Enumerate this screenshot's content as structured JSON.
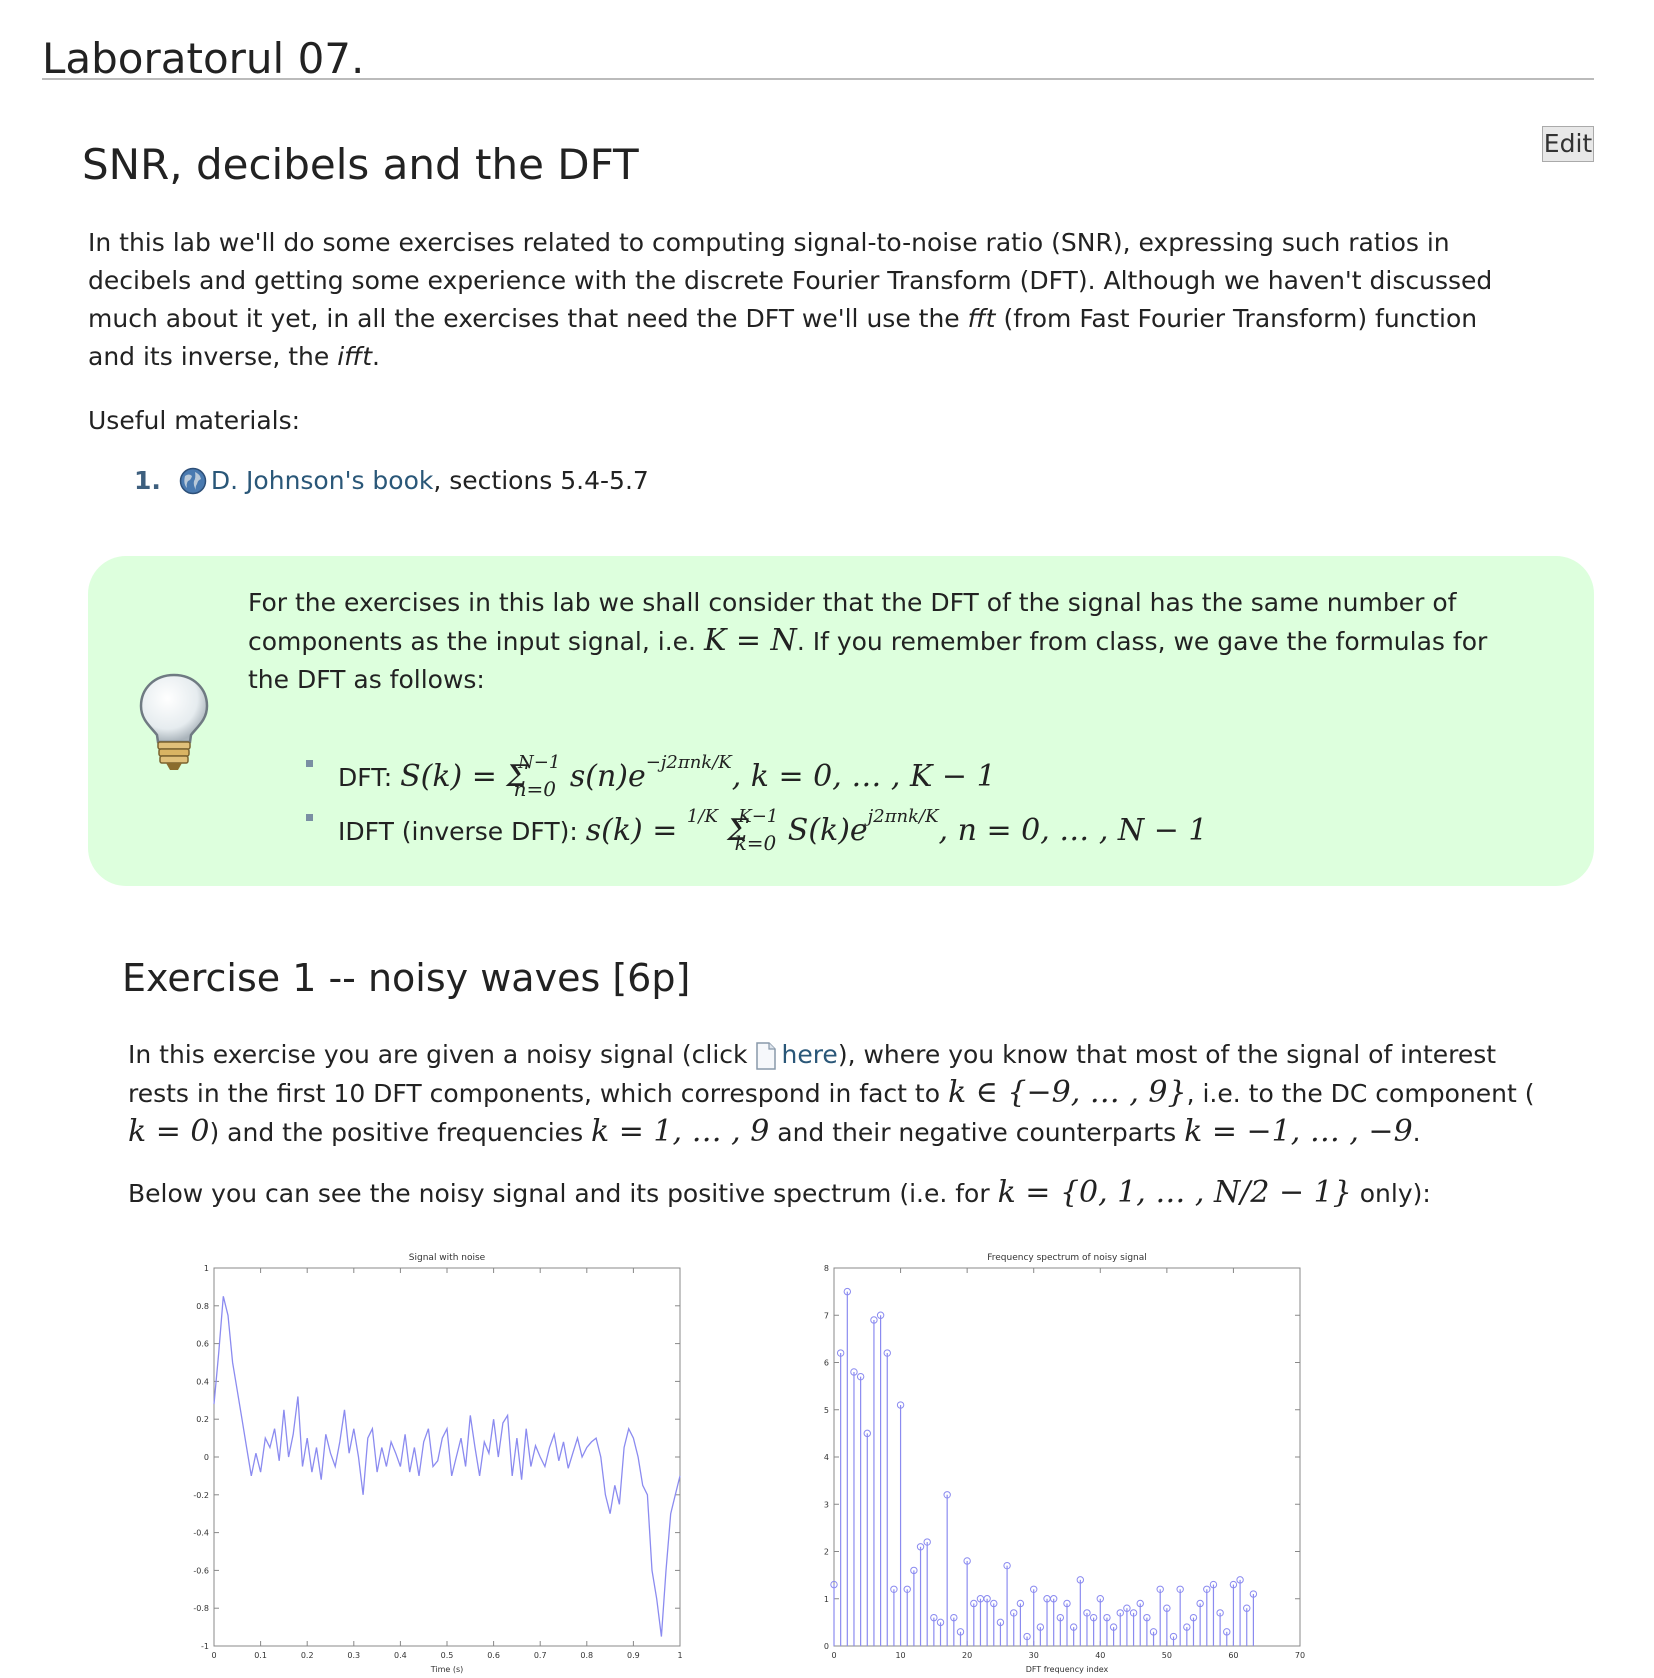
{
  "page": {
    "title": "Laboratorul 07.",
    "edit_label": "Edit",
    "section_title": "SNR, decibels and the DFT"
  },
  "intro": {
    "line1": "In this lab we'll do some exercises related to computing signal-to-noise ratio (SNR), expressing such ratios in",
    "line2": "decibels and getting some experience with the discrete Fourier Transform (DFT). Although we haven't discussed",
    "line3_a": "much about it yet, in all the exercises that need the DFT we'll use the ",
    "line3_fft": "fft",
    "line3_b": " (from Fast Fourier Transform) function",
    "line4_a": "and its inverse, the ",
    "line4_ifft": "ifft",
    "line4_b": "."
  },
  "useful": {
    "label": "Useful materials:",
    "items": [
      {
        "number": "1.",
        "link_text": "D. Johnson's book",
        "rest": ", sections 5.4-5.7",
        "icon": "globe-icon"
      }
    ]
  },
  "tip": {
    "icon": "lightbulb-icon",
    "line1": "For the exercises in this lab we shall consider that the DFT of the signal has the same number of",
    "line2_a": "components as the input signal, i.e. ",
    "line2_math": "K = N",
    "line2_b": ". If you remember from class, we gave the formulas for",
    "line3": "the DFT as follows:",
    "dft_label": "DFT: ",
    "idft_label": "IDFT (inverse DFT): "
  },
  "exercise1": {
    "title": "Exercise 1 -- noisy waves [6p]",
    "p1_a": "In this exercise you are given a noisy signal (click ",
    "p1_link": "here",
    "p1_b": "), where you know that most of the signal of interest",
    "p2_a": "rests in the first 10 DFT components, which correspond in fact to ",
    "p2_math": "k ∈ {−9, … , 9}",
    "p2_b": ", i.e. to the DC component (",
    "p3_math1": "k = 0",
    "p3_a": ") and the positive frequencies ",
    "p3_math2": "k = 1, … , 9",
    "p3_b": " and their negative counterparts ",
    "p3_math3": "k = −1, … , −9",
    "p3_c": ".",
    "below_a": "Below you can see the noisy signal and its positive spectrum (i.e. for ",
    "below_math": "k = {0, 1, … , N/2 − 1}",
    "below_b": " only):"
  },
  "chart_data": [
    {
      "type": "line",
      "title": "Signal with noise",
      "xlabel": "Time (s)",
      "ylabel": "",
      "xlim": [
        0,
        1
      ],
      "ylim": [
        -1,
        1
      ],
      "xticks": [
        "0",
        "0.1",
        "0.2",
        "0.3",
        "0.4",
        "0.5",
        "0.6",
        "0.7",
        "0.8",
        "0.9",
        "1"
      ],
      "yticks": [
        "-1",
        "-0.8",
        "-0.6",
        "-0.4",
        "-0.2",
        "0",
        "0.2",
        "0.4",
        "0.6",
        "0.8",
        "1"
      ],
      "color": "#8b8bf0",
      "x": [
        0,
        0.01,
        0.02,
        0.03,
        0.04,
        0.05,
        0.06,
        0.07,
        0.08,
        0.09,
        0.1,
        0.11,
        0.12,
        0.13,
        0.14,
        0.15,
        0.16,
        0.17,
        0.18,
        0.19,
        0.2,
        0.21,
        0.22,
        0.23,
        0.24,
        0.25,
        0.26,
        0.27,
        0.28,
        0.29,
        0.3,
        0.31,
        0.32,
        0.33,
        0.34,
        0.35,
        0.36,
        0.37,
        0.38,
        0.39,
        0.4,
        0.41,
        0.42,
        0.43,
        0.44,
        0.45,
        0.46,
        0.47,
        0.48,
        0.49,
        0.5,
        0.51,
        0.52,
        0.53,
        0.54,
        0.55,
        0.56,
        0.57,
        0.58,
        0.59,
        0.6,
        0.61,
        0.62,
        0.63,
        0.64,
        0.65,
        0.66,
        0.67,
        0.68,
        0.69,
        0.7,
        0.71,
        0.72,
        0.73,
        0.74,
        0.75,
        0.76,
        0.77,
        0.78,
        0.79,
        0.8,
        0.81,
        0.82,
        0.83,
        0.84,
        0.85,
        0.86,
        0.87,
        0.88,
        0.89,
        0.9,
        0.91,
        0.92,
        0.93,
        0.94,
        0.95,
        0.96,
        0.97,
        0.98,
        0.99,
        1
      ],
      "y": [
        0.28,
        0.55,
        0.85,
        0.75,
        0.5,
        0.35,
        0.2,
        0.05,
        -0.1,
        0.02,
        -0.08,
        0.1,
        0.05,
        0.15,
        -0.02,
        0.25,
        0.0,
        0.12,
        0.32,
        -0.05,
        0.1,
        -0.08,
        0.05,
        -0.12,
        0.12,
        0.02,
        -0.05,
        0.08,
        0.25,
        0.02,
        0.15,
        0.0,
        -0.2,
        0.1,
        0.15,
        -0.08,
        0.05,
        -0.05,
        0.08,
        0.02,
        -0.05,
        0.12,
        -0.08,
        0.05,
        -0.1,
        0.08,
        0.15,
        -0.05,
        -0.02,
        0.1,
        0.15,
        -0.1,
        0.0,
        0.1,
        -0.05,
        0.22,
        0.05,
        -0.1,
        0.08,
        0.02,
        0.2,
        0.0,
        0.18,
        0.22,
        -0.1,
        0.1,
        -0.12,
        0.15,
        -0.05,
        0.06,
        0.0,
        -0.05,
        0.05,
        0.12,
        -0.02,
        0.08,
        -0.06,
        0.02,
        0.1,
        0.0,
        0.05,
        0.08,
        0.1,
        0.0,
        -0.2,
        -0.3,
        -0.15,
        -0.25,
        0.05,
        0.15,
        0.1,
        0.0,
        -0.15,
        -0.2,
        -0.6,
        -0.75,
        -0.95,
        -0.6,
        -0.3,
        -0.2,
        -0.1
      ]
    },
    {
      "type": "stem",
      "title": "Frequency spectrum of noisy signal",
      "xlabel": "DFT frequency index",
      "ylabel": "",
      "xlim": [
        0,
        70
      ],
      "ylim": [
        0,
        8
      ],
      "xticks": [
        "0",
        "10",
        "20",
        "30",
        "40",
        "50",
        "60",
        "70"
      ],
      "yticks": [
        "0",
        "1",
        "2",
        "3",
        "4",
        "5",
        "6",
        "7",
        "8"
      ],
      "color": "#8b8bf0",
      "x": [
        0,
        1,
        2,
        3,
        4,
        5,
        6,
        7,
        8,
        9,
        10,
        11,
        12,
        13,
        14,
        15,
        16,
        17,
        18,
        19,
        20,
        21,
        22,
        23,
        24,
        25,
        26,
        27,
        28,
        29,
        30,
        31,
        32,
        33,
        34,
        35,
        36,
        37,
        38,
        39,
        40,
        41,
        42,
        43,
        44,
        45,
        46,
        47,
        48,
        49,
        50,
        51,
        52,
        53,
        54,
        55,
        56,
        57,
        58,
        59,
        60,
        61,
        62,
        63
      ],
      "y": [
        1.3,
        6.2,
        7.5,
        5.8,
        5.7,
        4.5,
        6.9,
        7.0,
        6.2,
        1.2,
        5.1,
        1.2,
        1.6,
        2.1,
        2.2,
        0.6,
        0.5,
        3.2,
        0.6,
        0.3,
        1.8,
        0.9,
        1.0,
        1.0,
        0.9,
        0.5,
        1.7,
        0.7,
        0.9,
        0.2,
        1.2,
        0.4,
        1.0,
        1.0,
        0.6,
        0.9,
        0.4,
        1.4,
        0.7,
        0.6,
        1.0,
        0.6,
        0.4,
        0.7,
        0.8,
        0.7,
        0.9,
        0.6,
        0.3,
        1.2,
        0.8,
        0.2,
        1.2,
        0.4,
        0.6,
        0.9,
        1.2,
        1.3,
        0.7,
        0.3,
        1.3,
        1.4,
        0.8,
        1.1
      ]
    }
  ]
}
